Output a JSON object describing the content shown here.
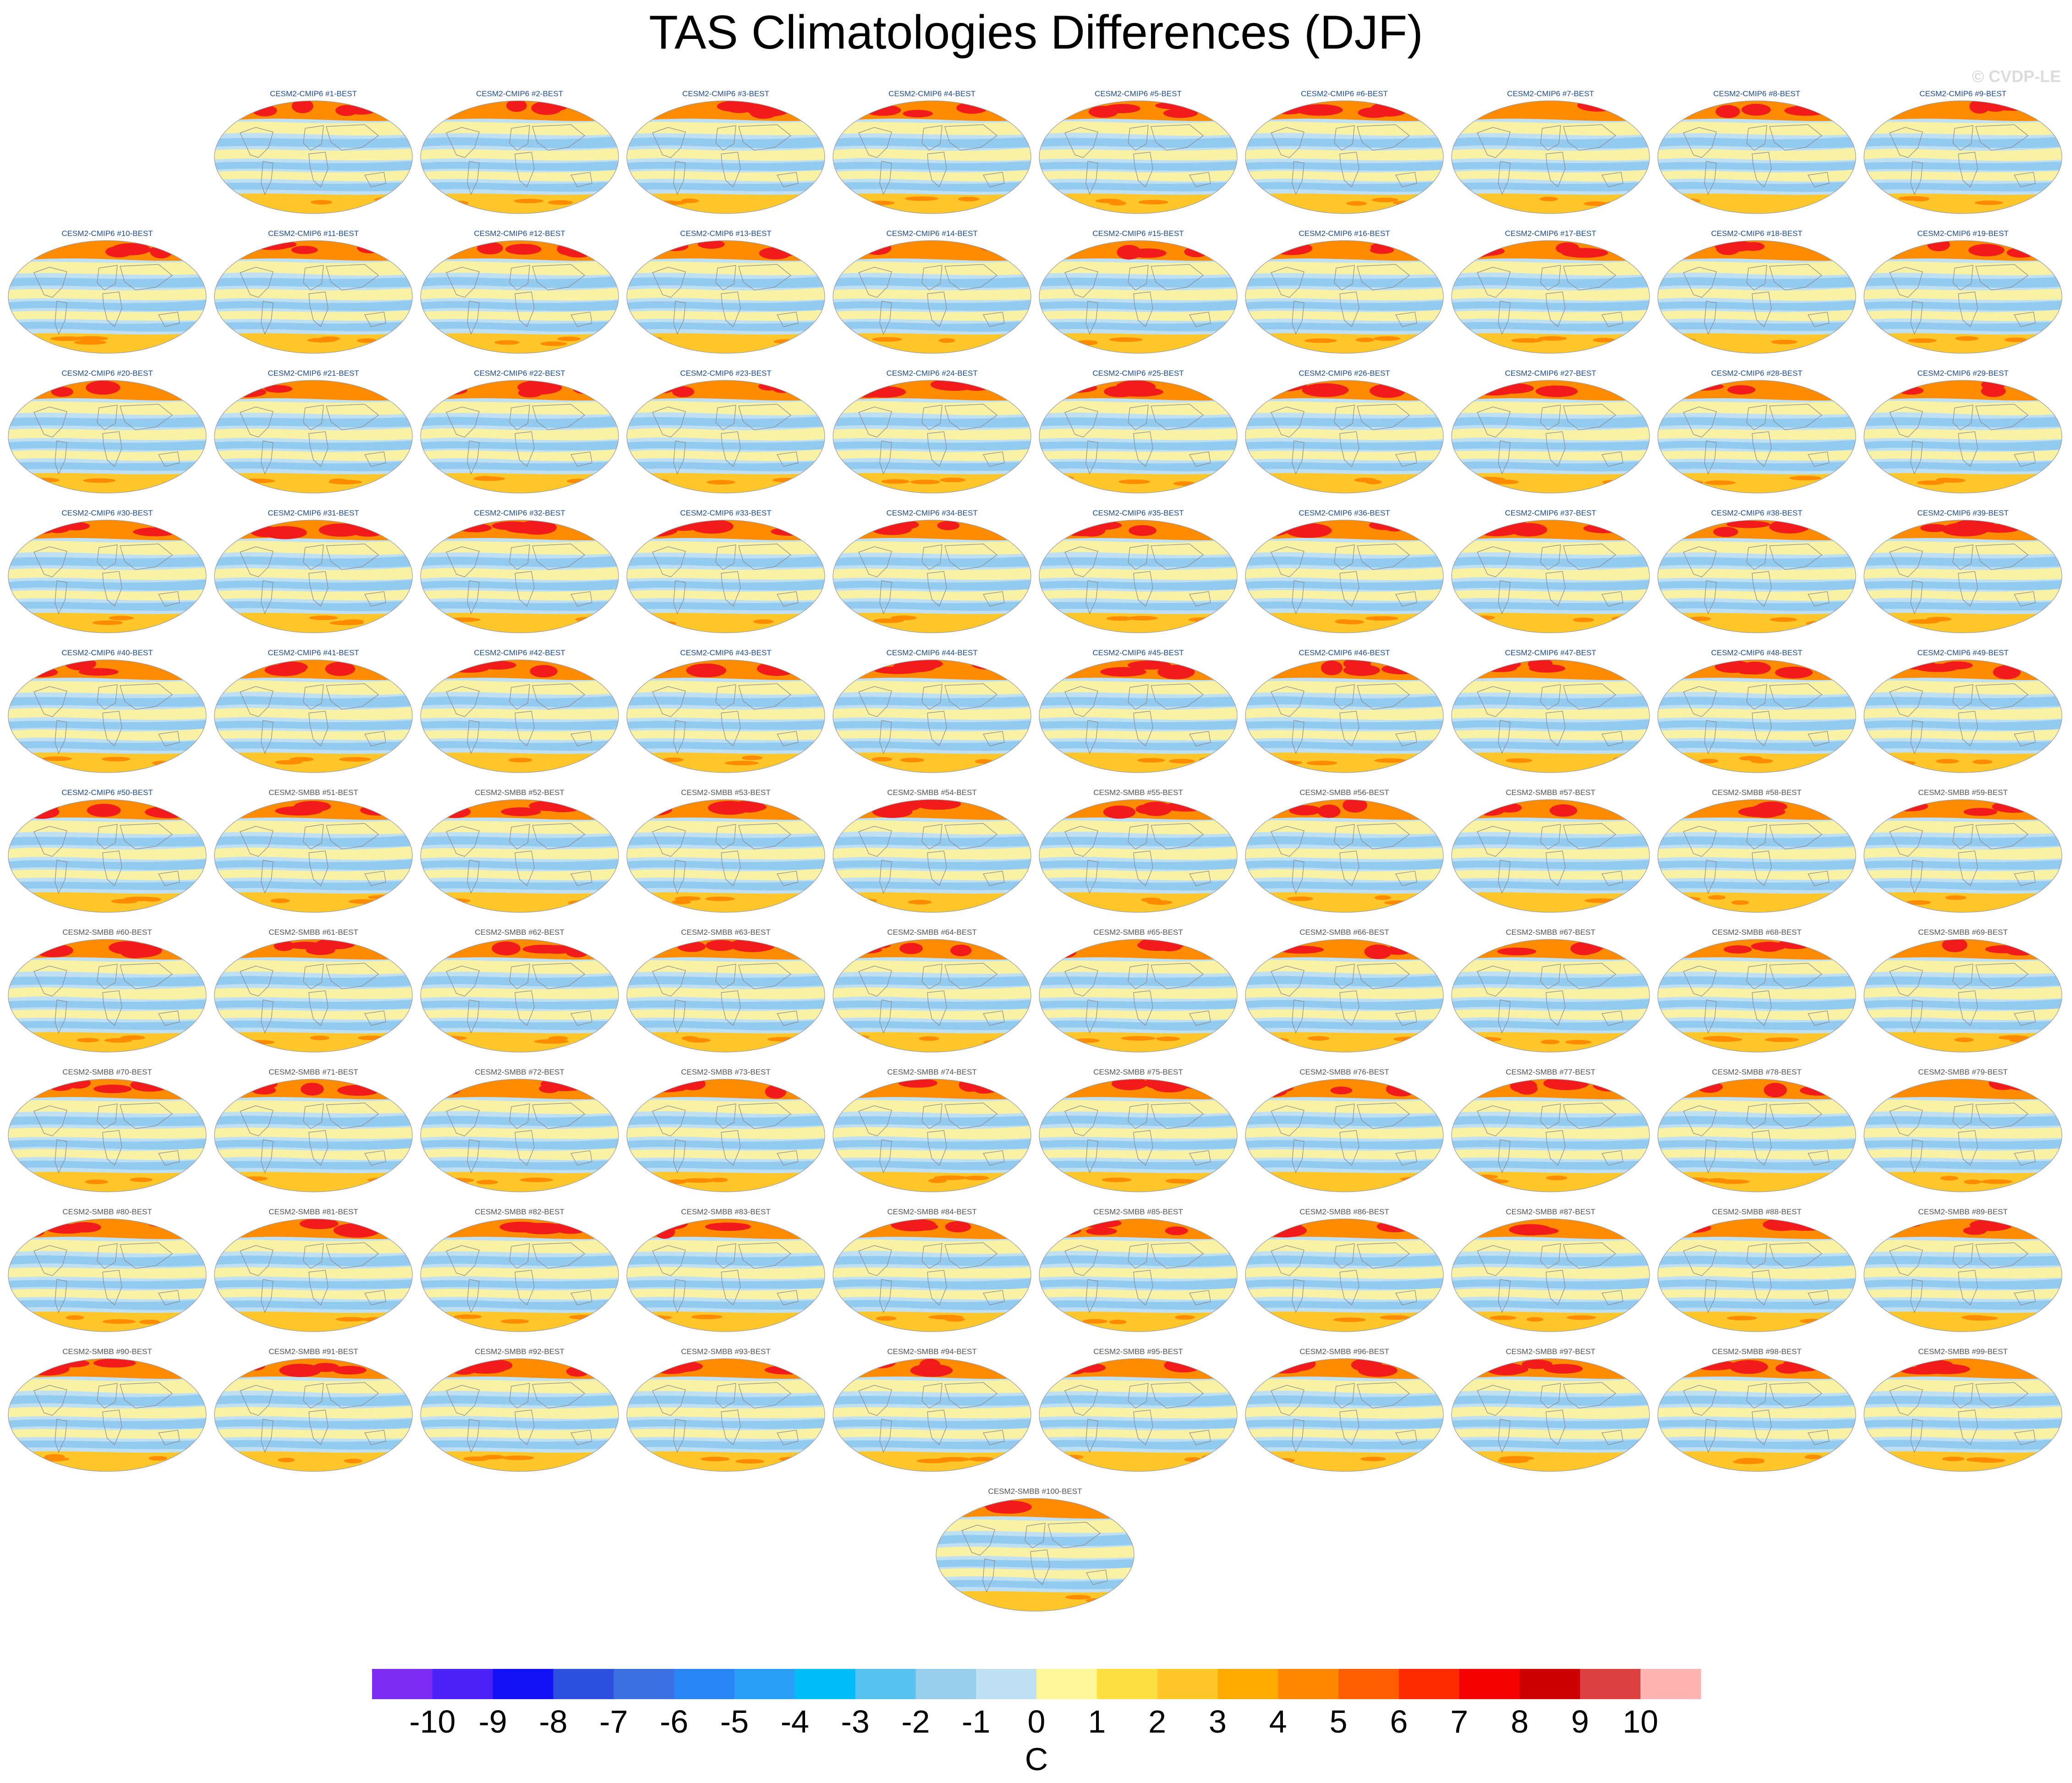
{
  "title": "TAS Climatologies Differences (DJF)",
  "watermark": "© CVDP-LE",
  "panel_suffix": "-BEST",
  "groups": [
    {
      "name": "CESM2-CMIP6",
      "from": 1,
      "to": 50,
      "title_color": "#1d4c8f"
    },
    {
      "name": "CESM2-SMBB",
      "from": 51,
      "to": 100,
      "title_color": "#555555"
    }
  ],
  "panels": [
    "CESM2-CMIP6 #1-BEST",
    "CESM2-CMIP6 #2-BEST",
    "CESM2-CMIP6 #3-BEST",
    "CESM2-CMIP6 #4-BEST",
    "CESM2-CMIP6 #5-BEST",
    "CESM2-CMIP6 #6-BEST",
    "CESM2-CMIP6 #7-BEST",
    "CESM2-CMIP6 #8-BEST",
    "CESM2-CMIP6 #9-BEST",
    "CESM2-CMIP6 #10-BEST",
    "CESM2-CMIP6 #11-BEST",
    "CESM2-CMIP6 #12-BEST",
    "CESM2-CMIP6 #13-BEST",
    "CESM2-CMIP6 #14-BEST",
    "CESM2-CMIP6 #15-BEST",
    "CESM2-CMIP6 #16-BEST",
    "CESM2-CMIP6 #17-BEST",
    "CESM2-CMIP6 #18-BEST",
    "CESM2-CMIP6 #19-BEST",
    "CESM2-CMIP6 #20-BEST",
    "CESM2-CMIP6 #21-BEST",
    "CESM2-CMIP6 #22-BEST",
    "CESM2-CMIP6 #23-BEST",
    "CESM2-CMIP6 #24-BEST",
    "CESM2-CMIP6 #25-BEST",
    "CESM2-CMIP6 #26-BEST",
    "CESM2-CMIP6 #27-BEST",
    "CESM2-CMIP6 #28-BEST",
    "CESM2-CMIP6 #29-BEST",
    "CESM2-CMIP6 #30-BEST",
    "CESM2-CMIP6 #31-BEST",
    "CESM2-CMIP6 #32-BEST",
    "CESM2-CMIP6 #33-BEST",
    "CESM2-CMIP6 #34-BEST",
    "CESM2-CMIP6 #35-BEST",
    "CESM2-CMIP6 #36-BEST",
    "CESM2-CMIP6 #37-BEST",
    "CESM2-CMIP6 #38-BEST",
    "CESM2-CMIP6 #39-BEST",
    "CESM2-CMIP6 #40-BEST",
    "CESM2-CMIP6 #41-BEST",
    "CESM2-CMIP6 #42-BEST",
    "CESM2-CMIP6 #43-BEST",
    "CESM2-CMIP6 #44-BEST",
    "CESM2-CMIP6 #45-BEST",
    "CESM2-CMIP6 #46-BEST",
    "CESM2-CMIP6 #47-BEST",
    "CESM2-CMIP6 #48-BEST",
    "CESM2-CMIP6 #49-BEST",
    "CESM2-CMIP6 #50-BEST",
    "CESM2-SMBB #51-BEST",
    "CESM2-SMBB #52-BEST",
    "CESM2-SMBB #53-BEST",
    "CESM2-SMBB #54-BEST",
    "CESM2-SMBB #55-BEST",
    "CESM2-SMBB #56-BEST",
    "CESM2-SMBB #57-BEST",
    "CESM2-SMBB #58-BEST",
    "CESM2-SMBB #59-BEST",
    "CESM2-SMBB #60-BEST",
    "CESM2-SMBB #61-BEST",
    "CESM2-SMBB #62-BEST",
    "CESM2-SMBB #63-BEST",
    "CESM2-SMBB #64-BEST",
    "CESM2-SMBB #65-BEST",
    "CESM2-SMBB #66-BEST",
    "CESM2-SMBB #67-BEST",
    "CESM2-SMBB #68-BEST",
    "CESM2-SMBB #69-BEST",
    "CESM2-SMBB #70-BEST",
    "CESM2-SMBB #71-BEST",
    "CESM2-SMBB #72-BEST",
    "CESM2-SMBB #73-BEST",
    "CESM2-SMBB #74-BEST",
    "CESM2-SMBB #75-BEST",
    "CESM2-SMBB #76-BEST",
    "CESM2-SMBB #77-BEST",
    "CESM2-SMBB #78-BEST",
    "CESM2-SMBB #79-BEST",
    "CESM2-SMBB #80-BEST",
    "CESM2-SMBB #81-BEST",
    "CESM2-SMBB #82-BEST",
    "CESM2-SMBB #83-BEST",
    "CESM2-SMBB #84-BEST",
    "CESM2-SMBB #85-BEST",
    "CESM2-SMBB #86-BEST",
    "CESM2-SMBB #87-BEST",
    "CESM2-SMBB #88-BEST",
    "CESM2-SMBB #89-BEST",
    "CESM2-SMBB #90-BEST",
    "CESM2-SMBB #91-BEST",
    "CESM2-SMBB #92-BEST",
    "CESM2-SMBB #93-BEST",
    "CESM2-SMBB #94-BEST",
    "CESM2-SMBB #95-BEST",
    "CESM2-SMBB #96-BEST",
    "CESM2-SMBB #97-BEST",
    "CESM2-SMBB #98-BEST",
    "CESM2-SMBB #99-BEST",
    "CESM2-SMBB #100-BEST"
  ],
  "map_palette": {
    "ocean_base": "#bfe0f2",
    "cool_band": "#8ec8ef",
    "warm_band": "#fff39b",
    "arctic_hot": "#f21b1b",
    "arctic_warm": "#ff8c00",
    "southern_warm": "#ffc72a",
    "land_outline": "#8a8a8a"
  },
  "colorbar": {
    "units": "C",
    "labels": [
      "-10",
      "-9",
      "-8",
      "-7",
      "-6",
      "-5",
      "-4",
      "-3",
      "-2",
      "-1",
      "0",
      "1",
      "2",
      "3",
      "4",
      "5",
      "6",
      "7",
      "8",
      "9",
      "10"
    ],
    "colors": [
      "#7b2cf0",
      "#4a22f5",
      "#1212f5",
      "#2d4fe0",
      "#3c6fe0",
      "#2a86f5",
      "#2a9ff7",
      "#00bcf7",
      "#55c2ef",
      "#99cdec",
      "#bfe0f2",
      "#fff89b",
      "#ffe042",
      "#ffc72a",
      "#ffaa00",
      "#ff8800",
      "#ff5e00",
      "#ff2a00",
      "#f50000",
      "#cc0000",
      "#dd4040",
      "#ffb3b3"
    ]
  }
}
